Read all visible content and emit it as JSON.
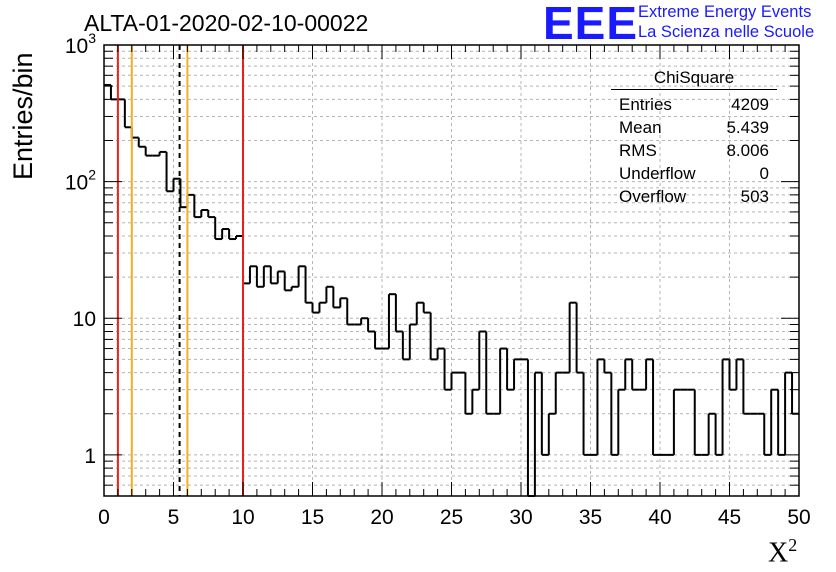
{
  "header": {
    "title": "ALTA-01-2020-02-10-00022",
    "logo_letters": "EEE",
    "logo_line1": "Extreme Energy Events",
    "logo_line2": "La Scienza nelle Scuole"
  },
  "stats_box": {
    "name": "ChiSquare",
    "rows": [
      {
        "label": "Entries",
        "value": "4209"
      },
      {
        "label": "Mean",
        "value": "5.439"
      },
      {
        "label": "RMS",
        "value": "8.006"
      },
      {
        "label": "Underflow",
        "value": "0"
      },
      {
        "label": "Overflow",
        "value": "503"
      }
    ]
  },
  "chart_data": {
    "type": "histogram",
    "title": "ALTA-01-2020-02-10-00022",
    "xlabel": "X",
    "xlabel_sup": "2",
    "ylabel": "Entries/bin",
    "xlim": [
      0,
      50
    ],
    "ylim": [
      0.5,
      1000
    ],
    "yscale": "log",
    "grid": true,
    "bin_width": 0.5,
    "x_ticks": [
      "0",
      "5",
      "10",
      "15",
      "20",
      "25",
      "30",
      "35",
      "40",
      "45",
      "50"
    ],
    "y_ticks": [
      {
        "value": 1000,
        "base": "10",
        "exp": "3"
      },
      {
        "value": 100,
        "base": "10",
        "exp": "2"
      },
      {
        "value": 10,
        "base": "10",
        "exp": ""
      },
      {
        "value": 1,
        "base": "1",
        "exp": ""
      }
    ],
    "values": [
      510,
      400,
      400,
      250,
      210,
      180,
      155,
      155,
      165,
      85,
      105,
      65,
      80,
      55,
      62,
      55,
      38,
      45,
      38,
      40,
      18,
      24,
      17,
      24,
      18,
      22,
      16,
      17,
      24,
      13,
      11,
      13,
      17,
      12,
      14,
      9,
      9,
      10,
      8,
      6,
      6,
      15,
      8,
      5,
      9,
      13,
      11,
      5,
      6,
      3,
      4,
      4,
      2,
      3,
      8,
      2,
      2,
      6,
      3,
      5,
      5,
      0,
      4,
      1,
      2,
      4,
      4,
      13,
      4,
      1,
      1,
      5,
      4,
      1,
      3,
      5,
      3,
      3,
      5,
      1,
      1,
      1,
      3,
      3,
      3,
      1,
      1,
      2,
      1,
      5,
      3,
      5,
      2,
      2,
      2,
      1,
      3,
      1,
      4,
      2
    ],
    "vertical_lines": [
      {
        "x": 1,
        "color": "#e8221a",
        "style": "solid"
      },
      {
        "x": 2,
        "color": "#f2b01e",
        "style": "solid"
      },
      {
        "x": 5.439,
        "color": "#000000",
        "style": "dashed"
      },
      {
        "x": 6,
        "color": "#f2b01e",
        "style": "solid"
      },
      {
        "x": 10,
        "color": "#e8221a",
        "style": "solid"
      }
    ]
  }
}
